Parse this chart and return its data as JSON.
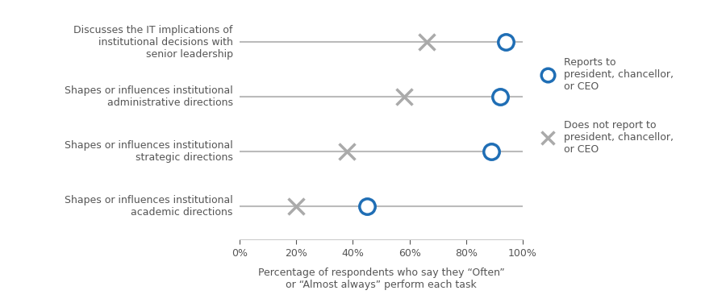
{
  "tasks": [
    "Discusses the IT implications of\ninstitutional decisions with\nsenior leadership",
    "Shapes or influences institutional\nadministrative directions",
    "Shapes or influences institutional\nstrategic directions",
    "Shapes or influences institutional\nacademic directions"
  ],
  "reports_to": [
    94,
    92,
    89,
    45
  ],
  "does_not_report": [
    66,
    58,
    38,
    20
  ],
  "circle_color": "#1f6eb5",
  "x_color": "#aaaaaa",
  "line_color": "#bbbbbb",
  "xlabel": "Percentage of respondents who say they “Often”\nor “Almost always” perform each task",
  "legend_circle_label": "Reports to\npresident, chancellor,\nor CEO",
  "legend_x_label": "Does not report to\npresident, chancellor,\nor CEO",
  "xlim": [
    0,
    100
  ],
  "xticks": [
    0,
    20,
    40,
    60,
    80,
    100
  ],
  "xticklabels": [
    "0%",
    "20%",
    "40%",
    "60%",
    "80%",
    "100%"
  ]
}
